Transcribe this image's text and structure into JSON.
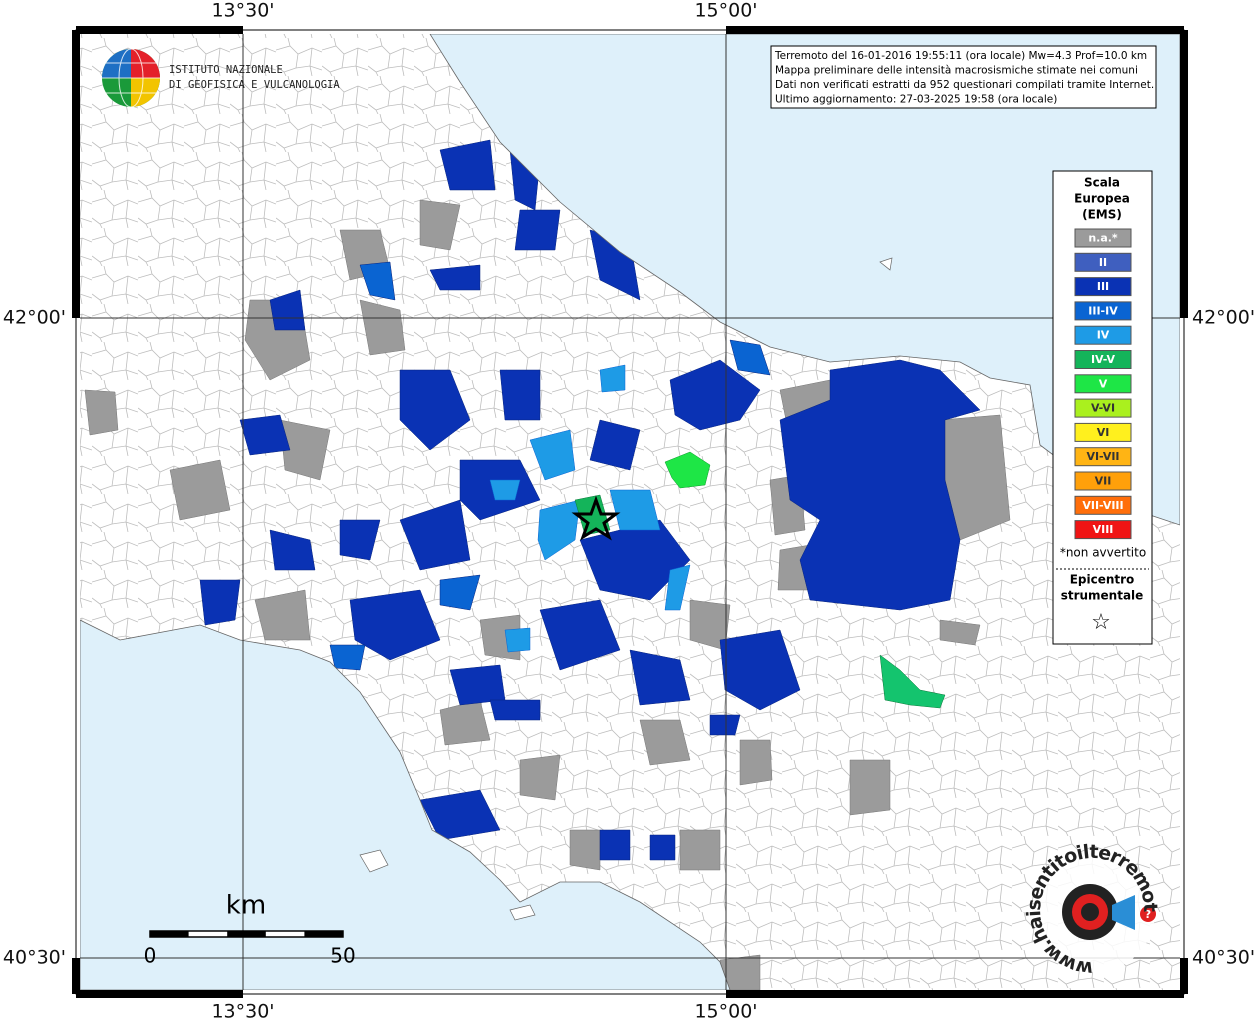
{
  "graticule": {
    "top": [
      "13°30'",
      "15°00'"
    ],
    "bottom": [
      "13°30'",
      "15°00'"
    ],
    "left": [
      "42°00'",
      "40°30'"
    ],
    "right": [
      "42°00'",
      "40°30'"
    ]
  },
  "info_box": {
    "lines": [
      "Terremoto del 16-01-2016 19:55:11 (ora locale) Mw=4.3 Prof=10.0 km",
      "Mappa preliminare delle intensità macrosismiche stimate nei comuni",
      "Dati non verificati estratti da 952 questionari compilati tramite Internet.",
      "Ultimo aggiornamento: 27-03-2025 19:58 (ora locale)"
    ]
  },
  "institute": {
    "lines": [
      "ISTITUTO NAZIONALE",
      "DI GEOFISICA E VULCANOLOGIA"
    ]
  },
  "legend": {
    "title": [
      "Scala",
      "Europea",
      "(EMS)"
    ],
    "items": [
      {
        "label": "n.a.*",
        "color": "#9b9b9b"
      },
      {
        "label": "II",
        "color": "#3f5fbf"
      },
      {
        "label": "III",
        "color": "#0a32b4"
      },
      {
        "label": "III-IV",
        "color": "#0a64d2"
      },
      {
        "label": "IV",
        "color": "#1e9be6"
      },
      {
        "label": "IV-V",
        "color": "#14b45a"
      },
      {
        "label": "V",
        "color": "#1ee646"
      },
      {
        "label": "V-VI",
        "color": "#aaf01e"
      },
      {
        "label": "VI",
        "color": "#fff01e"
      },
      {
        "label": "VI-VII",
        "color": "#ffb414"
      },
      {
        "label": "VII",
        "color": "#ffa00a"
      },
      {
        "label": "VII-VIII",
        "color": "#ff6e0a"
      },
      {
        "label": "VIII",
        "color": "#f01414"
      }
    ],
    "note": "*non avvertito",
    "epicenter_title": [
      "Epicentro",
      "strumentale"
    ],
    "epicenter_symbol": "☆"
  },
  "scale_bar": {
    "unit": "km",
    "labels": [
      "0",
      "50"
    ]
  },
  "site_logo": {
    "text": "www.haisentitoilterremoto.it",
    "mark": "?"
  }
}
